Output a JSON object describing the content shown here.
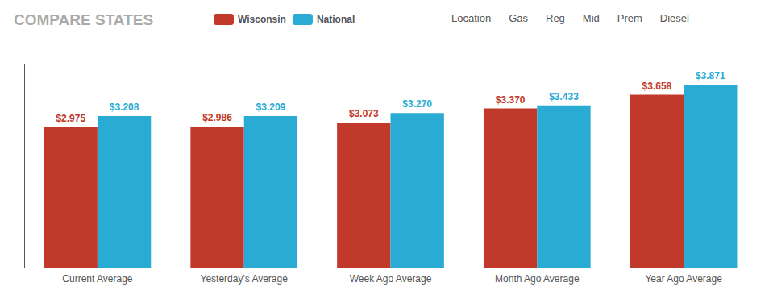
{
  "chart_data": {
    "type": "bar",
    "title": "COMPARE STATES",
    "categories": [
      "Current Average",
      "Yesterday's Average",
      "Week Ago Average",
      "Month Ago Average",
      "Year Ago Average"
    ],
    "series": [
      {
        "name": "Wisconsin",
        "color": "#C0392B",
        "values": [
          2.975,
          2.986,
          3.073,
          3.37,
          3.658
        ],
        "value_labels": [
          "$2.975",
          "$2.986",
          "$3.073",
          "$3.370",
          "$3.658"
        ]
      },
      {
        "name": "National",
        "color": "#29ABD4",
        "values": [
          3.208,
          3.209,
          3.27,
          3.433,
          3.871
        ],
        "value_labels": [
          "$3.208",
          "$3.209",
          "$3.270",
          "$3.433",
          "$3.871"
        ]
      }
    ],
    "ylim": [
      0,
      4.3
    ],
    "grid": false,
    "legend": "top",
    "data_labels": true,
    "tick_labels": "x",
    "annotations": [
      "Location",
      "Gas",
      "Reg",
      "Mid",
      "Prem",
      "Diesel"
    ]
  }
}
